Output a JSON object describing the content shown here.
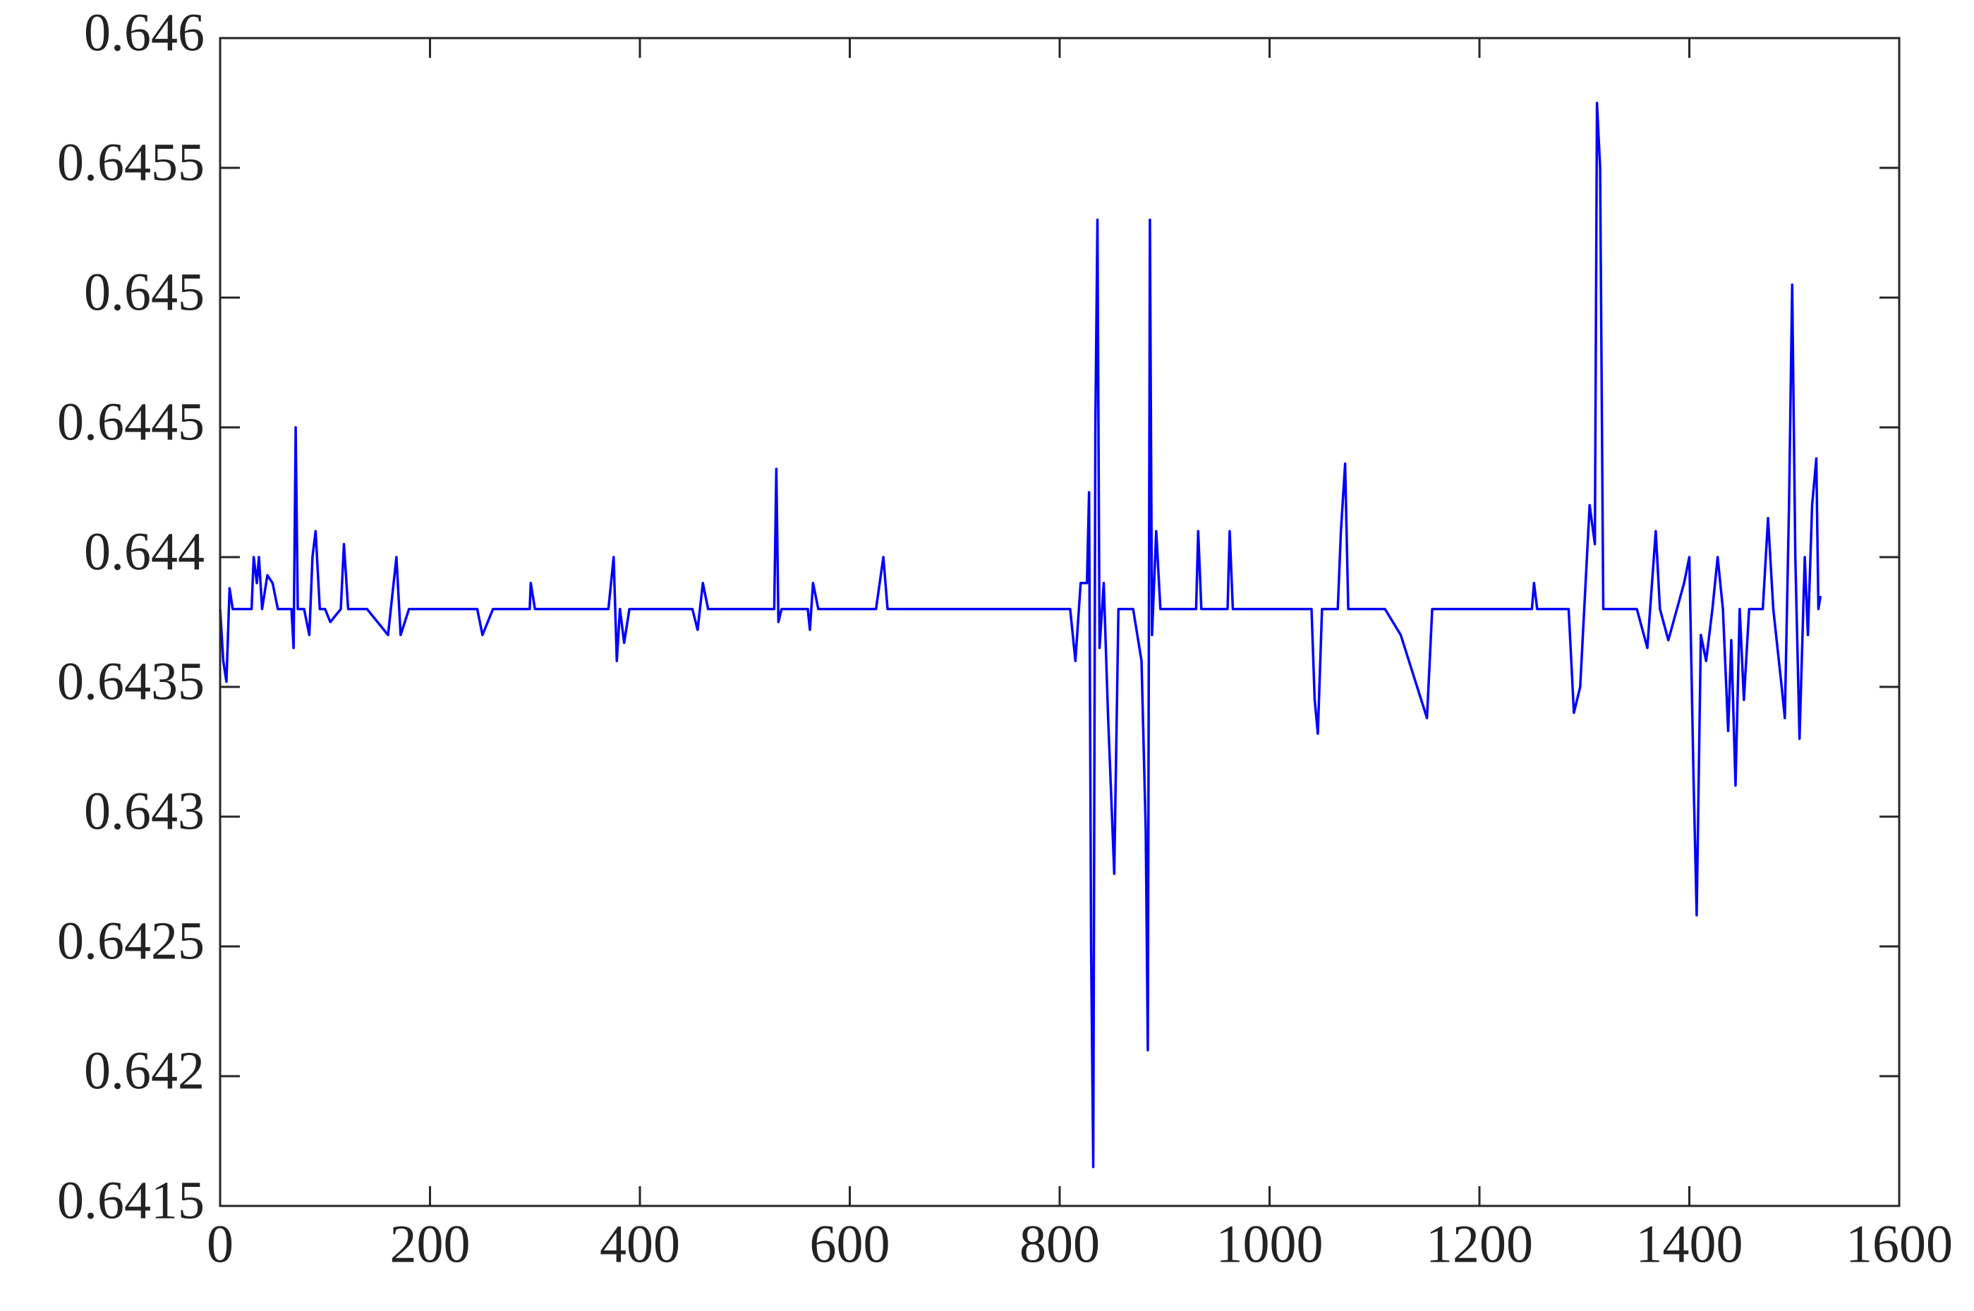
{
  "chart_data": {
    "type": "line",
    "xlim": [
      0,
      1600
    ],
    "xticks": [
      0,
      200,
      400,
      600,
      800,
      1000,
      1200,
      1400,
      1600
    ],
    "ylim": [
      0.6415,
      0.646
    ],
    "yticks": [
      0.6415,
      0.642,
      0.6425,
      0.643,
      0.6435,
      0.644,
      0.6445,
      0.645,
      0.6455,
      0.646
    ],
    "grid": false,
    "series": [
      {
        "color": "#0000ff",
        "x": [
          0,
          3,
          6,
          9,
          12,
          30,
          32,
          35,
          37,
          40,
          45,
          50,
          55,
          68,
          70,
          72,
          74,
          80,
          85,
          88,
          91,
          95,
          100,
          105,
          115,
          118,
          122,
          140,
          160,
          168,
          172,
          180,
          200,
          230,
          245,
          250,
          260,
          295,
          296,
          300,
          370,
          375,
          378,
          381,
          385,
          390,
          450,
          455,
          460,
          465,
          528,
          530,
          532,
          535,
          560,
          562,
          565,
          570,
          625,
          632,
          636,
          700,
          810,
          815,
          820,
          826,
          828,
          830,
          832,
          834,
          836,
          838,
          842,
          846,
          852,
          856,
          870,
          878,
          882,
          884,
          886,
          888,
          892,
          896,
          930,
          932,
          935,
          960,
          962,
          965,
          1040,
          1043,
          1046,
          1050,
          1065,
          1068,
          1072,
          1075,
          1110,
          1125,
          1150,
          1155,
          1250,
          1252,
          1255,
          1285,
          1290,
          1296,
          1305,
          1310,
          1312,
          1315,
          1318,
          1350,
          1360,
          1368,
          1372,
          1380,
          1395,
          1400,
          1404,
          1407,
          1411,
          1416,
          1422,
          1427,
          1432,
          1437,
          1440,
          1444,
          1448,
          1452,
          1457,
          1470,
          1475,
          1480,
          1488,
          1491,
          1495,
          1498,
          1501,
          1505,
          1510,
          1513,
          1517,
          1521,
          1523,
          1525
        ],
        "values": [
          0.6438,
          0.6436,
          0.64352,
          0.64388,
          0.6438,
          0.6438,
          0.644,
          0.6439,
          0.644,
          0.6438,
          0.64393,
          0.6439,
          0.6438,
          0.6438,
          0.64365,
          0.6445,
          0.6438,
          0.6438,
          0.6437,
          0.644,
          0.6441,
          0.6438,
          0.6438,
          0.64375,
          0.6438,
          0.64405,
          0.6438,
          0.6438,
          0.6437,
          0.644,
          0.6437,
          0.6438,
          0.6438,
          0.6438,
          0.6438,
          0.6437,
          0.6438,
          0.6438,
          0.6439,
          0.6438,
          0.6438,
          0.644,
          0.6436,
          0.6438,
          0.64367,
          0.6438,
          0.6438,
          0.64372,
          0.6439,
          0.6438,
          0.6438,
          0.64434,
          0.64375,
          0.6438,
          0.6438,
          0.64372,
          0.6439,
          0.6438,
          0.6438,
          0.644,
          0.6438,
          0.6438,
          0.6438,
          0.6436,
          0.6439,
          0.6439,
          0.64425,
          0.64248,
          0.64165,
          0.6445,
          0.6453,
          0.64365,
          0.6439,
          0.6434,
          0.64278,
          0.6438,
          0.6438,
          0.6436,
          0.64295,
          0.6421,
          0.6453,
          0.6437,
          0.6441,
          0.6438,
          0.6438,
          0.6441,
          0.6438,
          0.6438,
          0.6441,
          0.6438,
          0.6438,
          0.64345,
          0.64332,
          0.6438,
          0.6438,
          0.6441,
          0.64436,
          0.6438,
          0.6438,
          0.6437,
          0.64338,
          0.6438,
          0.6438,
          0.6439,
          0.6438,
          0.6438,
          0.6434,
          0.6435,
          0.6442,
          0.64405,
          0.64575,
          0.6455,
          0.6438,
          0.6438,
          0.64365,
          0.6441,
          0.6438,
          0.64368,
          0.6439,
          0.644,
          0.64315,
          0.64262,
          0.6437,
          0.6436,
          0.6438,
          0.644,
          0.6438,
          0.64333,
          0.64368,
          0.64312,
          0.6438,
          0.64345,
          0.6438,
          0.6438,
          0.64415,
          0.6438,
          0.6435,
          0.64338,
          0.6442,
          0.64505,
          0.644,
          0.6433,
          0.644,
          0.6437,
          0.6442,
          0.64438,
          0.6438,
          0.64385
        ]
      }
    ]
  }
}
